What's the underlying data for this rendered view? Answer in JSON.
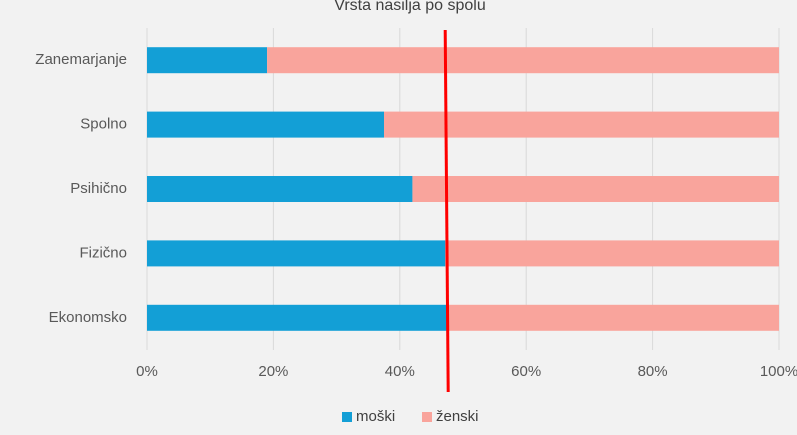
{
  "chart_data": {
    "type": "bar",
    "orientation": "horizontal",
    "stacked": "percent",
    "title": "Vrsta nasilja po spolu",
    "categories": [
      "Zanemarjanje",
      "Spolno",
      "Psihično",
      "Fizično",
      "Ekonomsko"
    ],
    "series": [
      {
        "name": "moški",
        "color": "#139fd6",
        "values": [
          19,
          37.5,
          42,
          47.2,
          47.5
        ]
      },
      {
        "name": "ženski",
        "color": "#f9a49c",
        "values": [
          81,
          62.5,
          58,
          52.8,
          52.5
        ]
      }
    ],
    "x_ticks": [
      "0%",
      "20%",
      "40%",
      "60%",
      "80%",
      "100%"
    ],
    "xlim": [
      0,
      100
    ],
    "grid": "vertical",
    "legend_position": "bottom",
    "reference_line": {
      "value": 47.5,
      "color": "#ff0000"
    },
    "background": "#f2f2f2"
  }
}
